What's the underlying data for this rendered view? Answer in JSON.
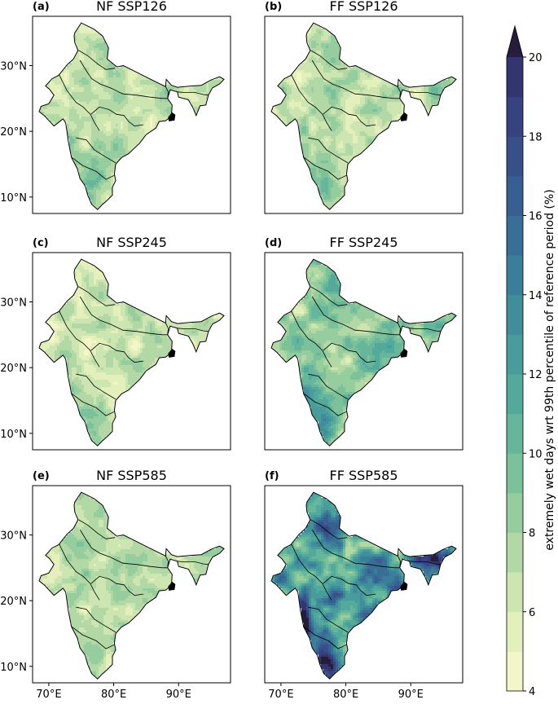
{
  "chart_data": {
    "type": "heatmap",
    "panels": [
      {
        "label": "(a)",
        "title": "NF SSP126",
        "intensity": 0.22
      },
      {
        "label": "(b)",
        "title": "FF SSP126",
        "intensity": 0.25
      },
      {
        "label": "(c)",
        "title": "NF SSP245",
        "intensity": 0.18
      },
      {
        "label": "(d)",
        "title": "FF SSP245",
        "intensity": 0.42
      },
      {
        "label": "(e)",
        "title": "NF SSP585",
        "intensity": 0.24
      },
      {
        "label": "(f)",
        "title": "FF SSP585",
        "intensity": 0.92
      }
    ],
    "lat_ticks": [
      "10°N",
      "20°N",
      "30°N"
    ],
    "lon_ticks": [
      "70°E",
      "80°E",
      "90°E"
    ],
    "lat_values": [
      10,
      20,
      30
    ],
    "lon_values": [
      70,
      80,
      90
    ],
    "colorbar": {
      "min": 4,
      "max": 20,
      "step": 1,
      "ticks": [
        4,
        6,
        8,
        10,
        12,
        14,
        16,
        18,
        20
      ],
      "extend": "max",
      "label": "extremely wet days wrt 99th percentile of reference period (%)",
      "colors": [
        "#f3f6c8",
        "#e4f0bc",
        "#cde5b0",
        "#b2d9a5",
        "#95cd9e",
        "#7bc29b",
        "#65b69b",
        "#53a99b",
        "#489c9b",
        "#408d9b",
        "#3b7e99",
        "#396e96",
        "#385f91",
        "#38508a",
        "#374280",
        "#333570",
        "#2c2a5a"
      ],
      "overflow_color": "#261d3a"
    }
  }
}
